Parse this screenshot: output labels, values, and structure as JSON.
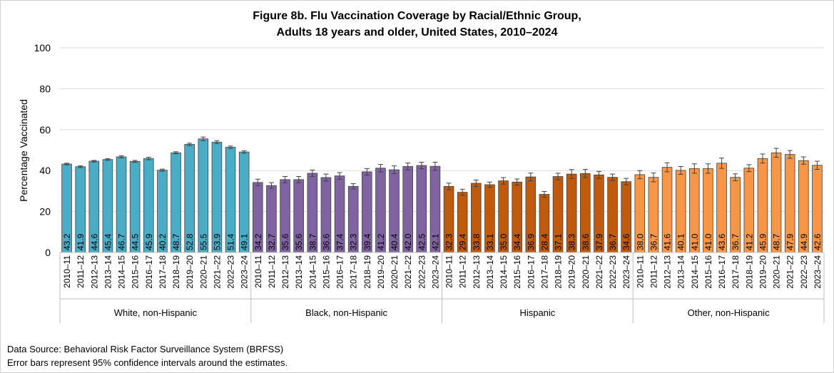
{
  "chart_data": {
    "type": "bar",
    "title": "Figure 8b. Flu Vaccination Coverage by Racial/Ethnic Group,",
    "subtitle": "Adults 18 years and older, United States, 2010–2024",
    "ylabel": "Percentage Vaccinated",
    "xlabel": "",
    "ylim": [
      0,
      100
    ],
    "yticks": [
      0,
      20,
      40,
      60,
      80,
      100
    ],
    "grid": true,
    "legend": "none",
    "categories": [
      "2010–11",
      "2011–12",
      "2012–13",
      "2013–14",
      "2014–15",
      "2015–16",
      "2016–17",
      "2017–18",
      "2018–19",
      "2019–20",
      "2020–21",
      "2021–22",
      "2022–23",
      "2023–24"
    ],
    "groups": [
      {
        "name": "White, non-Hispanic",
        "color": "#4bacc6",
        "values": [
          43.2,
          41.9,
          44.6,
          45.4,
          46.7,
          44.5,
          45.9,
          40.2,
          48.7,
          52.8,
          55.5,
          53.9,
          51.4,
          49.1
        ],
        "err": [
          0.4,
          0.4,
          0.4,
          0.4,
          0.5,
          0.5,
          0.6,
          0.5,
          0.5,
          0.6,
          0.9,
          0.7,
          0.6,
          0.6
        ]
      },
      {
        "name": "Black, non-Hispanic",
        "color": "#8064a2",
        "values": [
          34.2,
          32.7,
          35.6,
          35.6,
          38.7,
          36.6,
          37.4,
          32.3,
          39.4,
          41.2,
          40.4,
          42.0,
          42.5,
          42.1
        ],
        "err": [
          1.6,
          1.4,
          1.5,
          1.5,
          1.6,
          1.7,
          1.6,
          1.3,
          1.6,
          1.8,
          1.9,
          1.7,
          1.6,
          2.0
        ]
      },
      {
        "name": "Hispanic",
        "color": "#c05a0c",
        "values": [
          32.3,
          29.4,
          33.8,
          33.1,
          35.0,
          34.4,
          36.9,
          28.4,
          37.1,
          38.3,
          38.6,
          37.9,
          36.7,
          34.6
        ],
        "err": [
          1.6,
          1.5,
          1.6,
          1.3,
          1.6,
          1.5,
          1.9,
          1.4,
          1.6,
          2.2,
          2.0,
          1.7,
          1.6,
          1.6
        ]
      },
      {
        "name": "Other, non-Hispanic",
        "color": "#f79646",
        "values": [
          38.0,
          36.7,
          41.6,
          40.1,
          41.0,
          41.0,
          43.6,
          36.7,
          41.2,
          45.9,
          48.7,
          47.9,
          44.9,
          42.6
        ],
        "err": [
          2.0,
          2.2,
          2.2,
          1.9,
          2.3,
          2.3,
          2.5,
          1.7,
          1.7,
          2.2,
          2.2,
          1.9,
          1.8,
          2.0
        ]
      }
    ]
  },
  "footer": {
    "source": "Data Source: Behavioral Risk Factor Surveillance System (BRFSS)",
    "note": "Error bars represent 95% confidence intervals around the estimates."
  }
}
